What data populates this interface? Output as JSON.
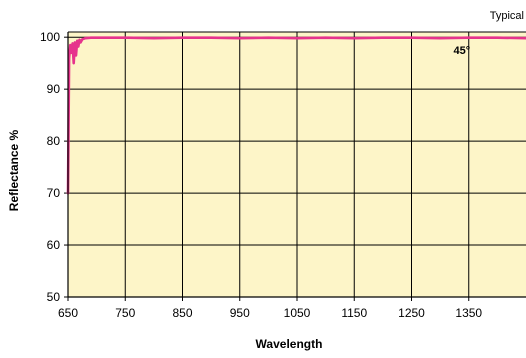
{
  "chart_data": {
    "type": "line",
    "title": "",
    "xlabel": "Wavelength",
    "ylabel": "Reflectance %",
    "note": "Typical",
    "annotation": "45°",
    "xlim": [
      650,
      1450
    ],
    "ylim": [
      50,
      101
    ],
    "xticks": [
      650,
      750,
      850,
      950,
      1050,
      1150,
      1250,
      1350
    ],
    "yticks": [
      50,
      60,
      70,
      80,
      90,
      100
    ],
    "grid": true,
    "background": "#fdf5c8",
    "series": [
      {
        "color": "#e6338c",
        "x": [
          650,
          652,
          654,
          656,
          658,
          660,
          662,
          664,
          666,
          668,
          670,
          672,
          675,
          680,
          690,
          700,
          750,
          800,
          850,
          900,
          950,
          1000,
          1050,
          1100,
          1150,
          1200,
          1250,
          1300,
          1350,
          1400,
          1450
        ],
        "y": [
          70,
          96,
          98.5,
          97,
          98.8,
          95,
          99,
          96.5,
          99.3,
          98.2,
          99.5,
          99,
          99.6,
          99.8,
          99.9,
          99.9,
          99.9,
          99.8,
          99.9,
          99.9,
          99.8,
          99.9,
          99.8,
          99.9,
          99.8,
          99.9,
          99.9,
          99.8,
          99.9,
          99.9,
          99.8
        ]
      }
    ]
  }
}
